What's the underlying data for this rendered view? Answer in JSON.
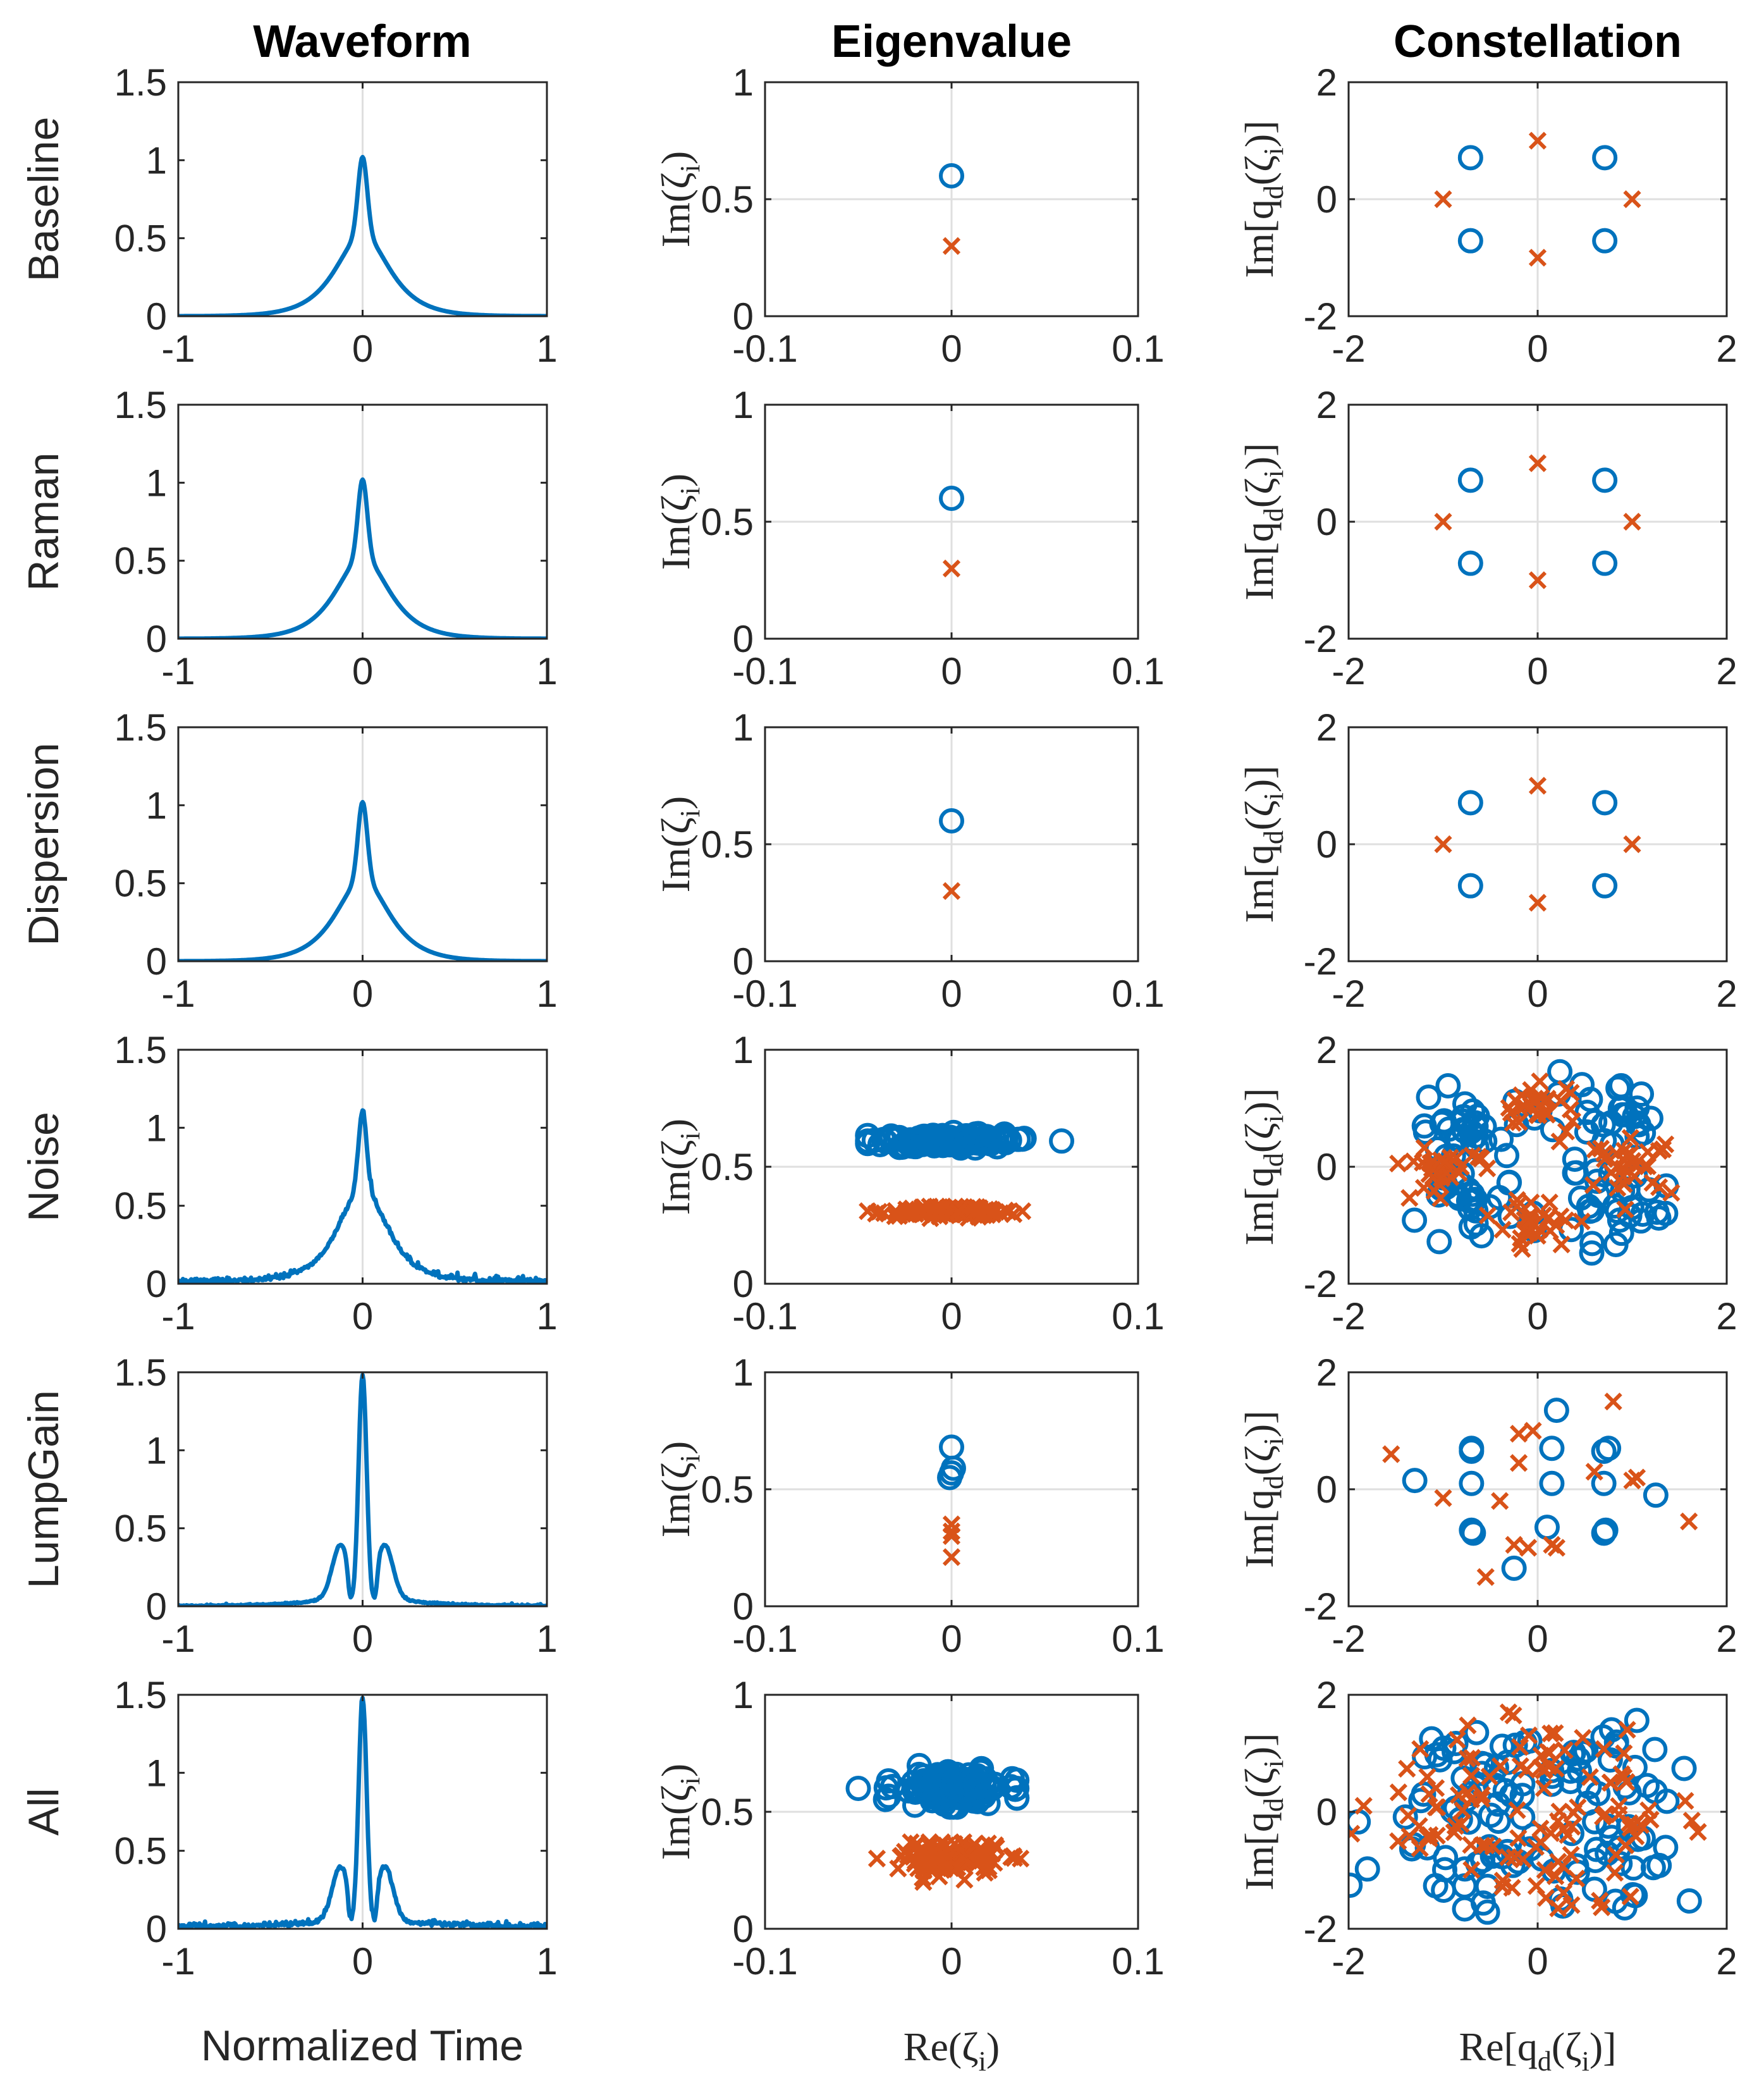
{
  "column_titles": [
    "Waveform",
    "Eigenvalue",
    "Constellation"
  ],
  "row_labels": [
    "Baseline",
    "Raman",
    "Dispersion",
    "Noise",
    "LumpGain",
    "All"
  ],
  "colors": {
    "blue": "#0072BD",
    "orange": "#D95319",
    "axis": "#262626",
    "grid": "#dfdfdf"
  },
  "axis_labels": {
    "waveform_x": "Normalized Time",
    "eigen_x_main": "Re(ζ",
    "eigen_x_sub": "i",
    "eigen_y_main": "Im(ζ",
    "eigen_y_sub": "i",
    "const_x": [
      "Re[q",
      "d",
      "(ζ",
      "i",
      ")]"
    ],
    "const_y": [
      "Im[q",
      "d",
      "(ζ",
      "i",
      ")]"
    ]
  },
  "chart_data": [
    {
      "type": "line",
      "panel": "waveform",
      "xlim": [
        -1,
        1
      ],
      "ylim": [
        0,
        1.5
      ],
      "xticks": [
        -1,
        0,
        1
      ],
      "xtick_labels": [
        "-1",
        "0",
        "1"
      ],
      "yticks": [
        0,
        0.5,
        1,
        1.5
      ],
      "ytick_labels": [
        "0",
        "0.5",
        "1",
        "1.5"
      ],
      "grid": "center lines at x=0",
      "rows": [
        {
          "row": "Baseline",
          "peak": 1.02,
          "shape": "smooth"
        },
        {
          "row": "Raman",
          "peak": 1.02,
          "shape": "smooth"
        },
        {
          "row": "Dispersion",
          "peak": 1.02,
          "shape": "smooth"
        },
        {
          "row": "Noise",
          "peak": 1.1,
          "shape": "noisy"
        },
        {
          "row": "LumpGain",
          "peak": 1.48,
          "shape": "side-lobes"
        },
        {
          "row": "All",
          "peak": 1.47,
          "shape": "side-lobes-noisy"
        }
      ]
    },
    {
      "type": "scatter",
      "panel": "eigenvalue",
      "xlim": [
        -0.1,
        0.1
      ],
      "ylim": [
        0,
        1
      ],
      "xticks": [
        -0.1,
        0,
        0.1
      ],
      "xtick_labels": [
        "-0.1",
        "0",
        "0.1"
      ],
      "yticks": [
        0,
        0.5,
        1
      ],
      "ytick_labels": [
        "0",
        "0.5",
        "1"
      ],
      "series": [
        {
          "marker": "circle",
          "color": "blue"
        },
        {
          "marker": "x",
          "color": "orange"
        }
      ],
      "rows": [
        {
          "row": "Baseline",
          "circles": [
            [
              0,
              0.6
            ]
          ],
          "crosses": [
            [
              0,
              0.3
            ]
          ]
        },
        {
          "row": "Raman",
          "circles": [
            [
              0,
              0.6
            ]
          ],
          "crosses": [
            [
              0,
              0.3
            ]
          ]
        },
        {
          "row": "Dispersion",
          "circles": [
            [
              0,
              0.6
            ]
          ],
          "crosses": [
            [
              0,
              0.3
            ]
          ]
        },
        {
          "row": "Noise",
          "circles_cluster": {
            "center": [
              0,
              0.61
            ],
            "x_range": [
              -0.045,
              0.059
            ],
            "y_range": [
              0.58,
              0.65
            ]
          },
          "crosses_cluster": {
            "center": [
              0,
              0.31
            ],
            "x_range": [
              -0.045,
              0.038
            ],
            "y_range": [
              0.28,
              0.33
            ]
          }
        },
        {
          "row": "LumpGain",
          "circles": [
            [
              0,
              0.68
            ],
            [
              0,
              0.57
            ],
            [
              -0.001,
              0.55
            ],
            [
              0.001,
              0.59
            ]
          ],
          "crosses": [
            [
              0,
              0.35
            ],
            [
              0,
              0.3
            ],
            [
              0,
              0.32
            ],
            [
              0,
              0.21
            ]
          ]
        },
        {
          "row": "All",
          "circles_cluster": {
            "center": [
              0,
              0.6
            ],
            "x_range": [
              -0.05,
              0.035
            ],
            "y_range": [
              0.52,
              0.7
            ]
          },
          "crosses_cluster": {
            "center": [
              0,
              0.3
            ],
            "x_range": [
              -0.04,
              0.037
            ],
            "y_range": [
              0.2,
              0.37
            ]
          }
        }
      ]
    },
    {
      "type": "scatter",
      "panel": "constellation",
      "xlim": [
        -2,
        2
      ],
      "ylim": [
        -2,
        2
      ],
      "xticks": [
        -2,
        0,
        2
      ],
      "xtick_labels": [
        "-2",
        "0",
        "2"
      ],
      "yticks": [
        -2,
        0,
        2
      ],
      "ytick_labels": [
        "-2",
        "0",
        "2"
      ],
      "series": [
        {
          "marker": "circle",
          "color": "blue"
        },
        {
          "marker": "x",
          "color": "orange"
        }
      ],
      "rows": [
        {
          "row": "Baseline",
          "circles": [
            [
              -0.71,
              0.71
            ],
            [
              0.71,
              0.71
            ],
            [
              -0.71,
              -0.71
            ],
            [
              0.71,
              -0.71
            ]
          ],
          "crosses": [
            [
              0,
              1
            ],
            [
              -1,
              0
            ],
            [
              1,
              0
            ],
            [
              0,
              -1
            ]
          ]
        },
        {
          "row": "Raman",
          "circles": [
            [
              -0.71,
              0.71
            ],
            [
              0.71,
              0.71
            ],
            [
              -0.71,
              -0.71
            ],
            [
              0.71,
              -0.71
            ]
          ],
          "crosses": [
            [
              0,
              1
            ],
            [
              -1,
              0
            ],
            [
              1,
              0
            ],
            [
              0,
              -1
            ]
          ]
        },
        {
          "row": "Dispersion",
          "circles": [
            [
              -0.71,
              0.71
            ],
            [
              0.71,
              0.71
            ],
            [
              -0.71,
              -0.71
            ],
            [
              0.71,
              -0.71
            ]
          ],
          "crosses": [
            [
              0,
              1
            ],
            [
              -1,
              0
            ],
            [
              1,
              0
            ],
            [
              0,
              -1
            ]
          ]
        },
        {
          "row": "Noise",
          "circles_spread": 0.32,
          "crosses_spread": 0.22,
          "circle_centers": [
            [
              -0.71,
              0.71
            ],
            [
              0.71,
              0.71
            ],
            [
              -0.71,
              -0.71
            ],
            [
              0.71,
              -0.71
            ]
          ],
          "cross_centers": [
            [
              0,
              1
            ],
            [
              -1,
              0
            ],
            [
              1,
              0
            ],
            [
              0,
              -1
            ]
          ]
        },
        {
          "row": "LumpGain",
          "circles": [
            [
              -1.3,
              0.15
            ],
            [
              -0.7,
              0.7
            ],
            [
              -0.7,
              0.65
            ],
            [
              -0.7,
              0.1
            ],
            [
              -0.68,
              -0.75
            ],
            [
              -0.7,
              -0.7
            ],
            [
              -0.25,
              -1.35
            ],
            [
              0.1,
              -0.65
            ],
            [
              0.15,
              0.7
            ],
            [
              0.2,
              1.35
            ],
            [
              0.15,
              0.1
            ],
            [
              0.75,
              0.7
            ],
            [
              0.7,
              0.65
            ],
            [
              0.7,
              0.1
            ],
            [
              0.72,
              -0.7
            ],
            [
              0.7,
              -0.75
            ],
            [
              1.25,
              -0.1
            ]
          ],
          "crosses": [
            [
              -1.55,
              0.6
            ],
            [
              -1.0,
              -0.15
            ],
            [
              -0.4,
              -0.2
            ],
            [
              -0.2,
              0.95
            ],
            [
              -0.05,
              1.0
            ],
            [
              -0.2,
              0.45
            ],
            [
              -0.25,
              -0.95
            ],
            [
              0.2,
              -1.0
            ],
            [
              0.15,
              -0.95
            ],
            [
              0.6,
              0.3
            ],
            [
              0.8,
              1.5
            ],
            [
              1.05,
              0.2
            ],
            [
              1.0,
              0.15
            ],
            [
              1.6,
              -0.55
            ],
            [
              -0.55,
              -1.5
            ],
            [
              -0.1,
              -1.0
            ]
          ]
        },
        {
          "row": "All",
          "circles_spread": 0.5,
          "crosses_spread": 0.45,
          "circle_centers": [
            [
              -0.71,
              0.71
            ],
            [
              0.71,
              0.71
            ],
            [
              -0.71,
              -0.71
            ],
            [
              0.71,
              -0.71
            ]
          ],
          "cross_centers": [
            [
              0,
              1
            ],
            [
              -1,
              0
            ],
            [
              1,
              0
            ],
            [
              0,
              -1
            ]
          ]
        }
      ]
    }
  ]
}
